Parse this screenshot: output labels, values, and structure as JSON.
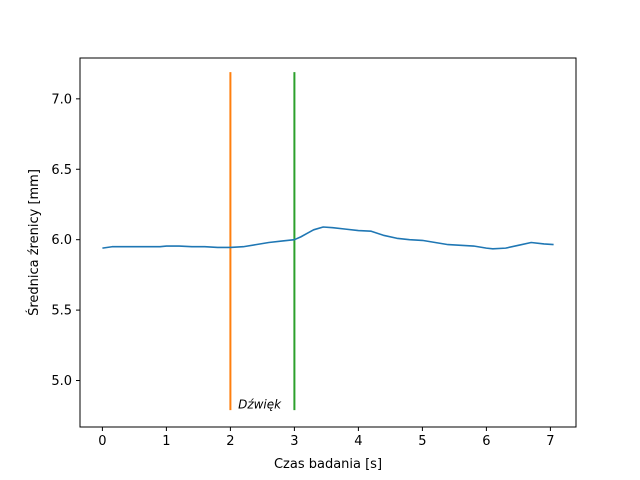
{
  "chart_data": {
    "type": "line",
    "xlabel": "Czas badania [s]",
    "ylabel": "Średnica źrenicy [mm]",
    "xlim": [
      -0.35,
      7.4
    ],
    "ylim": [
      4.67,
      7.29
    ],
    "xticks": [
      0,
      1,
      2,
      3,
      4,
      5,
      6,
      7
    ],
    "yticks": [
      5.0,
      5.5,
      6.0,
      6.5,
      7.0
    ],
    "ytick_labels": [
      "5.0",
      "5.5",
      "6.0",
      "6.5",
      "7.0"
    ],
    "grid": false,
    "legend": "none",
    "series": [
      {
        "color": "#1f77b4",
        "x": [
          0,
          0.15,
          0.3,
          0.5,
          0.7,
          0.9,
          1.0,
          1.2,
          1.4,
          1.6,
          1.8,
          2.0,
          2.2,
          2.4,
          2.6,
          2.8,
          3.0,
          3.1,
          3.2,
          3.3,
          3.45,
          3.6,
          3.8,
          4.0,
          4.2,
          4.4,
          4.6,
          4.8,
          5.0,
          5.2,
          5.4,
          5.6,
          5.8,
          6.0,
          6.1,
          6.3,
          6.5,
          6.7,
          6.9,
          7.05
        ],
        "y": [
          5.94,
          5.95,
          5.95,
          5.95,
          5.95,
          5.95,
          5.955,
          5.955,
          5.95,
          5.95,
          5.945,
          5.945,
          5.95,
          5.965,
          5.98,
          5.99,
          6.0,
          6.02,
          6.045,
          6.07,
          6.09,
          6.085,
          6.075,
          6.065,
          6.06,
          6.03,
          6.01,
          6.0,
          5.995,
          5.98,
          5.965,
          5.96,
          5.955,
          5.94,
          5.935,
          5.94,
          5.96,
          5.98,
          5.97,
          5.965
        ]
      }
    ],
    "vlines": [
      {
        "x": 2.0,
        "ymin": 4.79,
        "ymax": 7.19,
        "color": "#ff7f0e"
      },
      {
        "x": 3.0,
        "ymin": 4.79,
        "ymax": 7.19,
        "color": "#2ca02c"
      }
    ],
    "annotations": [
      {
        "text": "Dźwięk",
        "x": 2.12,
        "y": 4.8
      }
    ]
  }
}
